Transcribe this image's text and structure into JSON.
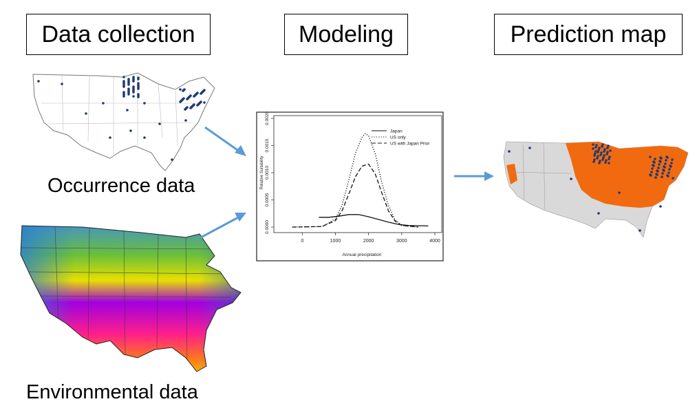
{
  "stages": {
    "collection": "Data collection",
    "modeling": "Modeling",
    "prediction": "Prediction map"
  },
  "captions": {
    "occurrence": "Occurrence data",
    "environmental": "Environmental data"
  },
  "colors": {
    "arrow": "#5b9bd5",
    "occurrence_dot": "#1f3a70",
    "prediction_fill": "#f26a10",
    "land_gray": "#d9d9d9"
  },
  "chart_data": {
    "type": "line",
    "xlabel": "Annual precipitation",
    "ylabel": "Relative Suitability",
    "xlim": [
      -400,
      4000
    ],
    "ylim": [
      0,
      0.002
    ],
    "x_ticks": [
      "0",
      "1000",
      "2000",
      "3000",
      "4000"
    ],
    "y_ticks": [
      "0.0000",
      "0.0005",
      "0.0010",
      "0.0015",
      "0.0020"
    ],
    "legend_position": "top-right",
    "series": [
      {
        "name": "Japan",
        "dash": "solid",
        "x": [
          500,
          800,
          1100,
          1400,
          1700,
          2000,
          2300,
          2600,
          2900,
          3200,
          3500,
          3800
        ],
        "y": [
          0.00018,
          0.00018,
          0.0002,
          0.00023,
          0.00023,
          0.00019,
          0.00014,
          9e-05,
          5e-05,
          3e-05,
          2.5e-05,
          2e-05
        ]
      },
      {
        "name": "US only",
        "dash": "dotted",
        "x": [
          -300,
          600,
          1000,
          1200,
          1400,
          1600,
          1800,
          1900,
          2000,
          2200,
          2400,
          2600,
          2800,
          3000,
          3500
        ],
        "y": [
          0.0,
          1e-05,
          0.00015,
          0.0004,
          0.00085,
          0.00135,
          0.00165,
          0.00172,
          0.00168,
          0.00135,
          0.00082,
          0.0004,
          0.00013,
          3e-05,
          0.0
        ]
      },
      {
        "name": "US with Japan Prior",
        "dash": "dashed",
        "x": [
          -300,
          600,
          1000,
          1200,
          1400,
          1600,
          1800,
          2000,
          2200,
          2400,
          2600,
          2800,
          3000,
          3500
        ],
        "y": [
          0.0,
          1e-05,
          0.00012,
          0.0003,
          0.0006,
          0.00092,
          0.00112,
          0.00116,
          0.00098,
          0.00063,
          0.0003,
          0.00011,
          3e-05,
          0.0
        ]
      }
    ]
  }
}
